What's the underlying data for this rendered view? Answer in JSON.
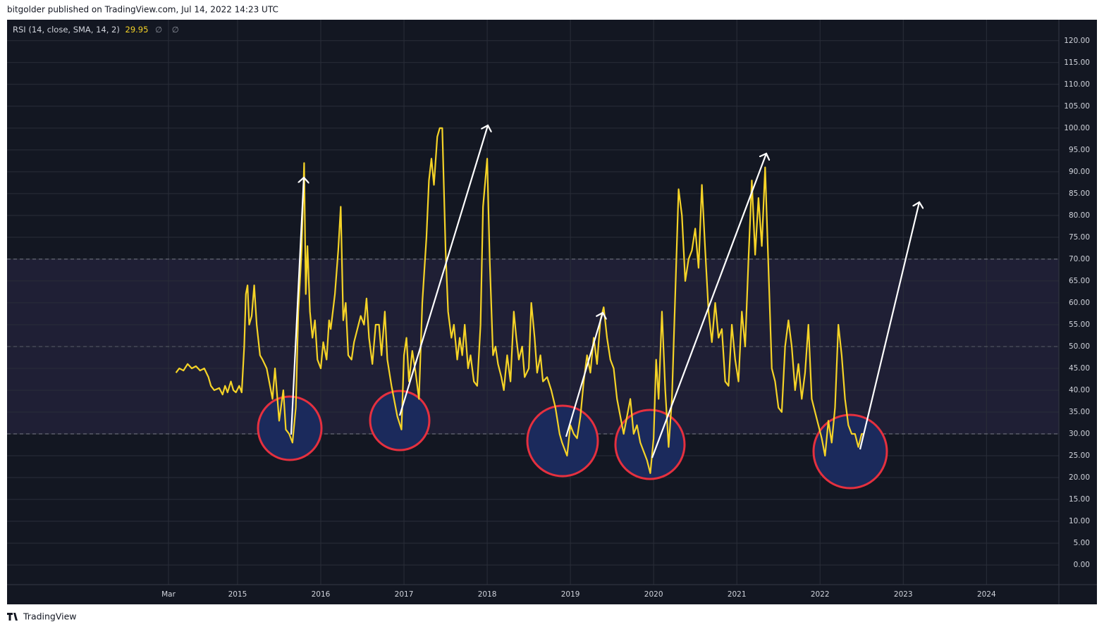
{
  "header": "bitgolder published on TradingView.com, Jul 14, 2022 14:23 UTC",
  "footer": "TradingView",
  "chart_data": {
    "type": "line",
    "legend_value": 29.95,
    "legend_icons": [
      "∅",
      "∅"
    ],
    "x": [
      2014.26,
      2014.3,
      2014.35,
      2014.4,
      2014.45,
      2014.5,
      2014.55,
      2014.6,
      2014.65,
      2014.68,
      2014.72,
      2014.78,
      2014.82,
      2014.85,
      2014.88,
      2014.92,
      2014.95,
      2014.98,
      2015.02,
      2015.05,
      2015.08,
      2015.1,
      2015.12,
      2015.14,
      2015.17,
      2015.2,
      2015.23,
      2015.27,
      2015.3,
      2015.35,
      2015.38,
      2015.42,
      2015.45,
      2015.5,
      2015.55,
      2015.58,
      2015.62,
      2015.66,
      2015.7,
      2015.73,
      2015.77,
      2015.8,
      2015.82,
      2015.84,
      2015.87,
      2015.9,
      2015.93,
      2015.96,
      2016.0,
      2016.03,
      2016.07,
      2016.1,
      2016.12,
      2016.17,
      2016.21,
      2016.24,
      2016.27,
      2016.3,
      2016.33,
      2016.37,
      2016.4,
      2016.44,
      2016.48,
      2016.52,
      2016.55,
      2016.58,
      2016.62,
      2016.66,
      2016.7,
      2016.73,
      2016.77,
      2016.8,
      2016.85,
      2016.88,
      2016.92,
      2016.97,
      2017.0,
      2017.03,
      2017.06,
      2017.1,
      2017.14,
      2017.18,
      2017.22,
      2017.27,
      2017.3,
      2017.33,
      2017.36,
      2017.4,
      2017.43,
      2017.46,
      2017.5,
      2017.53,
      2017.57,
      2017.6,
      2017.64,
      2017.67,
      2017.7,
      2017.73,
      2017.77,
      2017.8,
      2017.84,
      2017.88,
      2017.92,
      2017.95,
      2018.0,
      2018.03,
      2018.07,
      2018.1,
      2018.13,
      2018.17,
      2018.2,
      2018.24,
      2018.28,
      2018.32,
      2018.35,
      2018.38,
      2018.42,
      2018.45,
      2018.5,
      2018.53,
      2018.57,
      2018.6,
      2018.64,
      2018.67,
      2018.72,
      2018.77,
      2018.82,
      2018.87,
      2018.9,
      2018.96,
      2019.0,
      2019.04,
      2019.08,
      2019.12,
      2019.16,
      2019.2,
      2019.24,
      2019.28,
      2019.32,
      2019.36,
      2019.4,
      2019.44,
      2019.48,
      2019.52,
      2019.56,
      2019.6,
      2019.64,
      2019.68,
      2019.72,
      2019.76,
      2019.8,
      2019.84,
      2019.88,
      2019.92,
      2019.96,
      2020.0,
      2020.03,
      2020.06,
      2020.1,
      2020.14,
      2020.18,
      2020.22,
      2020.26,
      2020.3,
      2020.34,
      2020.38,
      2020.42,
      2020.46,
      2020.5,
      2020.54,
      2020.58,
      2020.62,
      2020.66,
      2020.7,
      2020.74,
      2020.78,
      2020.82,
      2020.86,
      2020.9,
      2020.94,
      2020.98,
      2021.02,
      2021.06,
      2021.1,
      2021.14,
      2021.18,
      2021.22,
      2021.26,
      2021.3,
      2021.34,
      2021.38,
      2021.42,
      2021.46,
      2021.5,
      2021.54,
      2021.58,
      2021.62,
      2021.66,
      2021.7,
      2021.74,
      2021.78,
      2021.82,
      2021.86,
      2021.9,
      2021.94,
      2021.98,
      2022.02,
      2022.06,
      2022.1,
      2022.14,
      2022.18,
      2022.22,
      2022.26,
      2022.3,
      2022.34,
      2022.38,
      2022.42,
      2022.46,
      2022.5,
      2022.53
    ],
    "series": [
      {
        "name": "RSI (14, close, SMA, 14, 2)",
        "color": "#f5d327",
        "values": [
          44,
          45,
          44.5,
          46,
          45,
          45.5,
          44.5,
          45,
          43,
          41,
          40,
          40.5,
          39,
          41,
          39.5,
          42,
          40,
          39.5,
          41,
          39.5,
          50,
          62,
          64,
          55,
          57,
          64,
          55,
          48,
          47,
          45,
          42,
          38,
          45,
          33,
          40,
          31,
          30,
          28,
          36,
          58,
          72,
          92,
          62,
          73,
          58,
          52,
          56,
          47,
          45,
          51,
          47,
          56,
          54,
          62,
          72,
          82,
          56,
          60,
          48,
          47,
          51,
          54,
          57,
          55,
          61,
          52,
          46,
          55,
          55,
          48,
          58,
          47,
          41,
          38,
          34,
          31,
          48,
          52,
          42,
          49,
          44,
          38,
          60,
          75,
          88,
          93,
          87,
          98,
          100,
          100,
          72,
          58,
          52,
          55,
          47,
          52,
          48,
          55,
          45,
          48,
          42,
          41,
          55,
          82,
          93,
          70,
          48,
          50,
          46,
          43,
          40,
          48,
          42,
          58,
          52,
          47,
          50,
          43,
          45,
          60,
          52,
          44,
          48,
          42,
          43,
          40,
          36,
          30,
          28,
          25,
          32,
          30,
          29,
          34,
          42,
          48,
          44,
          52,
          46,
          56,
          59,
          52,
          47,
          45,
          38,
          34,
          30,
          34,
          38,
          30,
          32,
          28,
          26,
          24,
          21,
          29,
          47,
          38,
          58,
          40,
          27,
          38,
          62,
          86,
          80,
          65,
          70,
          72,
          77,
          68,
          87,
          72,
          58,
          51,
          60,
          52,
          54,
          42,
          41,
          55,
          47,
          42,
          58,
          50,
          70,
          88,
          71,
          84,
          73,
          91,
          68,
          45,
          42,
          36,
          35,
          50,
          56,
          50,
          40,
          46,
          38,
          44,
          55,
          38,
          35,
          32,
          29,
          25,
          33,
          28,
          36,
          55,
          48,
          38,
          32,
          30,
          30,
          27,
          30,
          29.95
        ]
      }
    ],
    "xlim": [
      2012.23,
      2024.87
    ],
    "xticks": [
      {
        "value": 2014.17,
        "label": "Mar"
      },
      2015,
      2016,
      2017,
      2018,
      2019,
      2020,
      2021,
      2022,
      2023,
      2024
    ],
    "ylim": [
      -4.5,
      124.8
    ],
    "yticks": [
      {
        "value": 0,
        "label": "0.00"
      },
      {
        "value": 5,
        "label": "5.00"
      },
      {
        "value": 10,
        "label": "10.00"
      },
      {
        "value": 15,
        "label": "15.00"
      },
      {
        "value": 20,
        "label": "20.00"
      },
      {
        "value": 25,
        "label": "25.00"
      },
      {
        "value": 30,
        "label": "30.00"
      },
      {
        "value": 35,
        "label": "35.00"
      },
      {
        "value": 40,
        "label": "40.00"
      },
      {
        "value": 45,
        "label": "45.00"
      },
      {
        "value": 50,
        "label": "50.00"
      },
      {
        "value": 55,
        "label": "55.00"
      },
      {
        "value": 60,
        "label": "60.00"
      },
      {
        "value": 65,
        "label": "65.00"
      },
      {
        "value": 70,
        "label": "70.00"
      },
      {
        "value": 75,
        "label": "75.00"
      },
      {
        "value": 80,
        "label": "80.00"
      },
      {
        "value": 85,
        "label": "85.00"
      },
      {
        "value": 90,
        "label": "90.00"
      },
      {
        "value": 95,
        "label": "95.00"
      },
      {
        "value": 100,
        "label": "100.00"
      },
      {
        "value": 105,
        "label": "105.00"
      },
      {
        "value": 110,
        "label": "110.00"
      },
      {
        "value": 115,
        "label": "115.00"
      },
      {
        "value": 120,
        "label": "120.00"
      }
    ],
    "band": [
      30,
      70
    ],
    "midline": 50,
    "grid": true
  }
}
